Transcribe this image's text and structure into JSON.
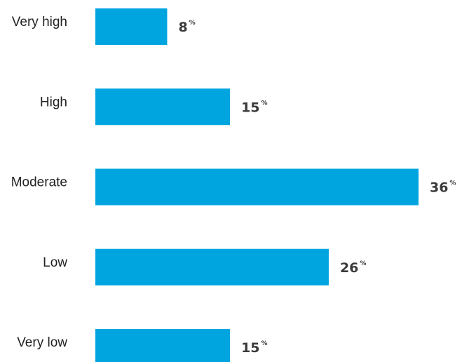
{
  "chart_data": {
    "type": "bar",
    "orientation": "horizontal",
    "categories": [
      "Very high",
      "High",
      "Moderate",
      "Low",
      "Very low"
    ],
    "values": [
      8,
      15,
      36,
      26,
      15
    ],
    "value_suffix": "%",
    "xlim": [
      0,
      36
    ],
    "grid": false,
    "legend": "none",
    "bar_color": "#00a5e0"
  }
}
